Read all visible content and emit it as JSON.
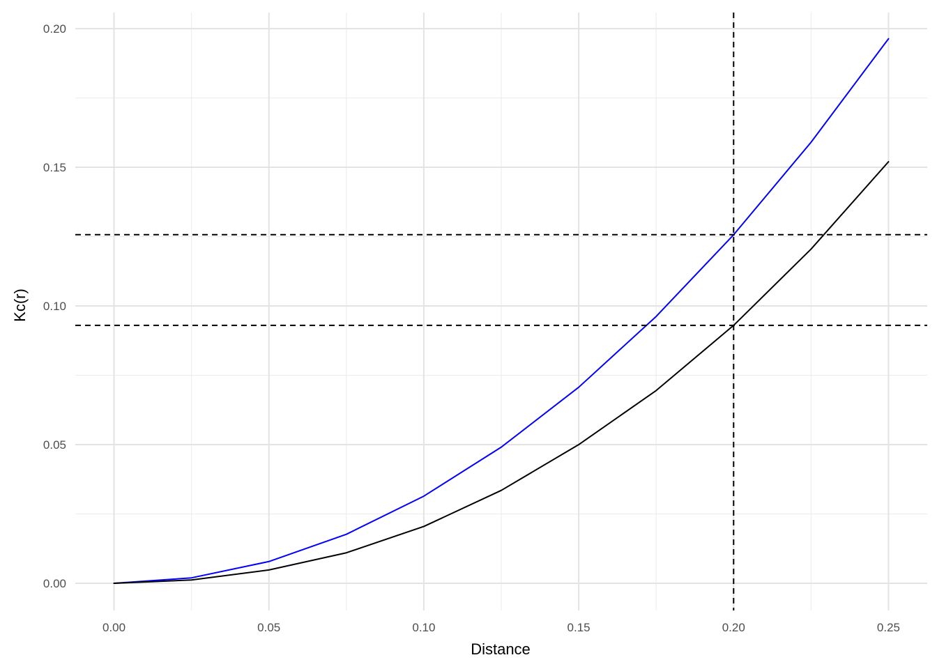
{
  "chart_data": {
    "type": "line",
    "title": "",
    "xlabel": "Distance",
    "ylabel": "Kc(r)",
    "xlim": [
      -0.0125,
      0.2625
    ],
    "ylim": [
      -0.0098,
      0.2058
    ],
    "grid": true,
    "legend": "none",
    "x_ticks": [
      0.0,
      0.05,
      0.1,
      0.15,
      0.2,
      0.25
    ],
    "x_tick_labels": [
      "0.00",
      "0.05",
      "0.10",
      "0.15",
      "0.20",
      "0.25"
    ],
    "y_ticks": [
      0.0,
      0.05,
      0.1,
      0.15,
      0.2
    ],
    "y_tick_labels": [
      "0.00",
      "0.05",
      "0.10",
      "0.15",
      "0.20"
    ],
    "series": [
      {
        "color": "#0000ff",
        "x": [
          0.0,
          0.025,
          0.05,
          0.075,
          0.1,
          0.125,
          0.15,
          0.175,
          0.2,
          0.225,
          0.25
        ],
        "y": [
          0.0,
          0.00196,
          0.00785,
          0.01767,
          0.03142,
          0.04909,
          0.07069,
          0.09621,
          0.12566,
          0.15904,
          0.19635
        ]
      },
      {
        "color": "#000000",
        "x": [
          0.0,
          0.025,
          0.05,
          0.075,
          0.1,
          0.125,
          0.15,
          0.175,
          0.2,
          0.225,
          0.25
        ],
        "y": [
          0.0,
          0.0012,
          0.0048,
          0.011,
          0.0205,
          0.0335,
          0.05,
          0.0695,
          0.093,
          0.1205,
          0.152
        ]
      }
    ],
    "reference_lines": [
      {
        "orientation": "vertical",
        "value": 0.2,
        "style": "dashed",
        "color": "#000000"
      },
      {
        "orientation": "horizontal",
        "value": 0.1257,
        "style": "dashed",
        "color": "#000000"
      },
      {
        "orientation": "horizontal",
        "value": 0.093,
        "style": "dashed",
        "color": "#000000"
      }
    ]
  }
}
